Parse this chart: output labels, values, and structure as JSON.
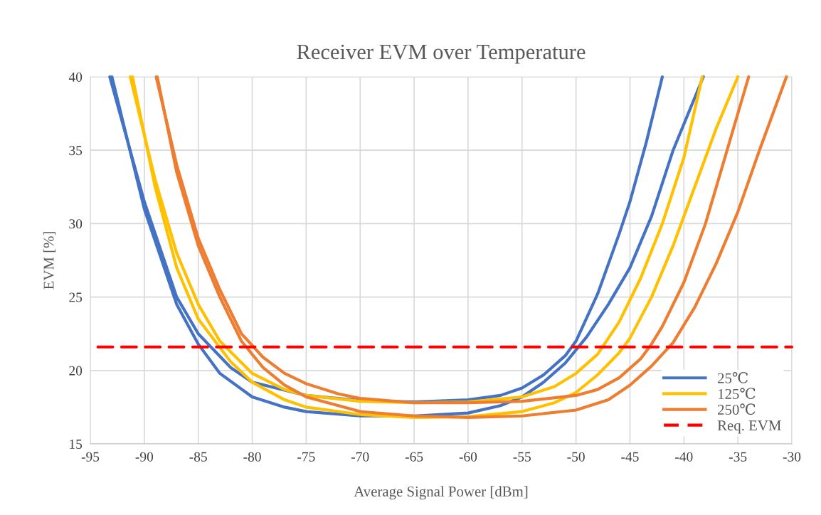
{
  "chart_data": {
    "type": "line",
    "title": "Receiver EVM over Temperature",
    "xlabel": "Average Signal Power [dBm]",
    "ylabel": "EVM [%]",
    "xlim": [
      -95,
      -30
    ],
    "xticks": [
      -95,
      -90,
      -85,
      -80,
      -75,
      -70,
      -65,
      -60,
      -55,
      -50,
      -45,
      -40,
      -35,
      -30
    ],
    "ylim": [
      15,
      40
    ],
    "yticks": [
      15,
      20,
      25,
      30,
      35,
      40
    ],
    "grid": true,
    "legend": "bottom right",
    "marker": "none",
    "series": [
      {
        "name": "25℃",
        "color": "#4472c4",
        "x": [
          -93.2,
          -90,
          -87,
          -85,
          -82,
          -80,
          -75,
          -70,
          -65,
          -60,
          -57,
          -55,
          -53,
          -51,
          -50,
          -48,
          -46,
          -45,
          -43.5,
          -42
        ],
        "values": [
          40,
          31.5,
          25,
          22.5,
          20.2,
          19.2,
          18.3,
          17.95,
          17.85,
          18.0,
          18.3,
          18.8,
          19.7,
          21.0,
          22,
          25.2,
          29.3,
          31.5,
          35.5,
          40
        ]
      },
      {
        "color": "#4472c4",
        "x": [
          -93,
          -90,
          -87,
          -85,
          -83,
          -80,
          -77,
          -75,
          -70,
          -65,
          -60,
          -57,
          -55,
          -53,
          -51,
          -49,
          -47,
          -45,
          -43,
          -41,
          -38.2
        ],
        "values": [
          40,
          31,
          24.5,
          21.8,
          19.8,
          18.2,
          17.5,
          17.2,
          16.9,
          16.9,
          17.1,
          17.6,
          18.2,
          19.2,
          20.5,
          22.3,
          24.5,
          27,
          30.5,
          35,
          40
        ]
      },
      {
        "name": "125℃",
        "color": "#ffc000",
        "x": [
          -91.3,
          -89,
          -87,
          -85,
          -83,
          -80,
          -77,
          -75,
          -70,
          -65,
          -60,
          -55,
          -52,
          -50,
          -48,
          -46,
          -44,
          -42,
          -40,
          -38.3
        ],
        "values": [
          40,
          33,
          28,
          24.5,
          22,
          19.8,
          18.7,
          18.3,
          17.9,
          17.8,
          17.85,
          18.2,
          18.9,
          19.8,
          21.1,
          23.3,
          26.3,
          30,
          34.5,
          40
        ]
      },
      {
        "color": "#ffc000",
        "x": [
          -91.1,
          -89,
          -87,
          -85,
          -82,
          -80,
          -77,
          -75,
          -70,
          -65,
          -60,
          -55,
          -52,
          -50,
          -48,
          -46,
          -45,
          -43,
          -41,
          -39,
          -37,
          -35
        ],
        "values": [
          40,
          32.5,
          27,
          23.5,
          20.6,
          19.2,
          18,
          17.5,
          17.0,
          16.8,
          16.85,
          17.2,
          17.8,
          18.5,
          19.7,
          21.2,
          22.2,
          25,
          28.5,
          32.5,
          36.5,
          40
        ]
      },
      {
        "name": "250℃",
        "color": "#ed7d31",
        "x": [
          -88.9,
          -87,
          -85,
          -83,
          -81,
          -79,
          -77,
          -75,
          -72,
          -70,
          -65,
          -60,
          -55,
          -50,
          -48,
          -46,
          -44,
          -43,
          -42,
          -40,
          -38,
          -36,
          -34
        ],
        "values": [
          40,
          34,
          29,
          25.5,
          22.5,
          20.9,
          19.8,
          19.1,
          18.4,
          18.1,
          17.8,
          17.8,
          17.9,
          18.3,
          18.7,
          19.5,
          20.8,
          21.8,
          23,
          26,
          30,
          35,
          40
        ]
      },
      {
        "color": "#ed7d31",
        "x": [
          -88.8,
          -87,
          -85,
          -83,
          -81,
          -79,
          -77,
          -75,
          -70,
          -65,
          -60,
          -55,
          -50,
          -47,
          -45,
          -43,
          -41,
          -39,
          -37,
          -35,
          -33,
          -30.5
        ],
        "values": [
          40,
          33.5,
          28.5,
          25,
          22,
          20.2,
          19.0,
          18.2,
          17.2,
          16.9,
          16.8,
          16.9,
          17.3,
          18.0,
          19.0,
          20.3,
          21.9,
          24.3,
          27.3,
          30.8,
          35,
          40
        ]
      },
      {
        "name": "Req. EVM",
        "color": "#ff0000",
        "line_style": "dashed",
        "x": [
          -94.3,
          -30
        ],
        "values": [
          21.6,
          21.6
        ]
      }
    ]
  }
}
